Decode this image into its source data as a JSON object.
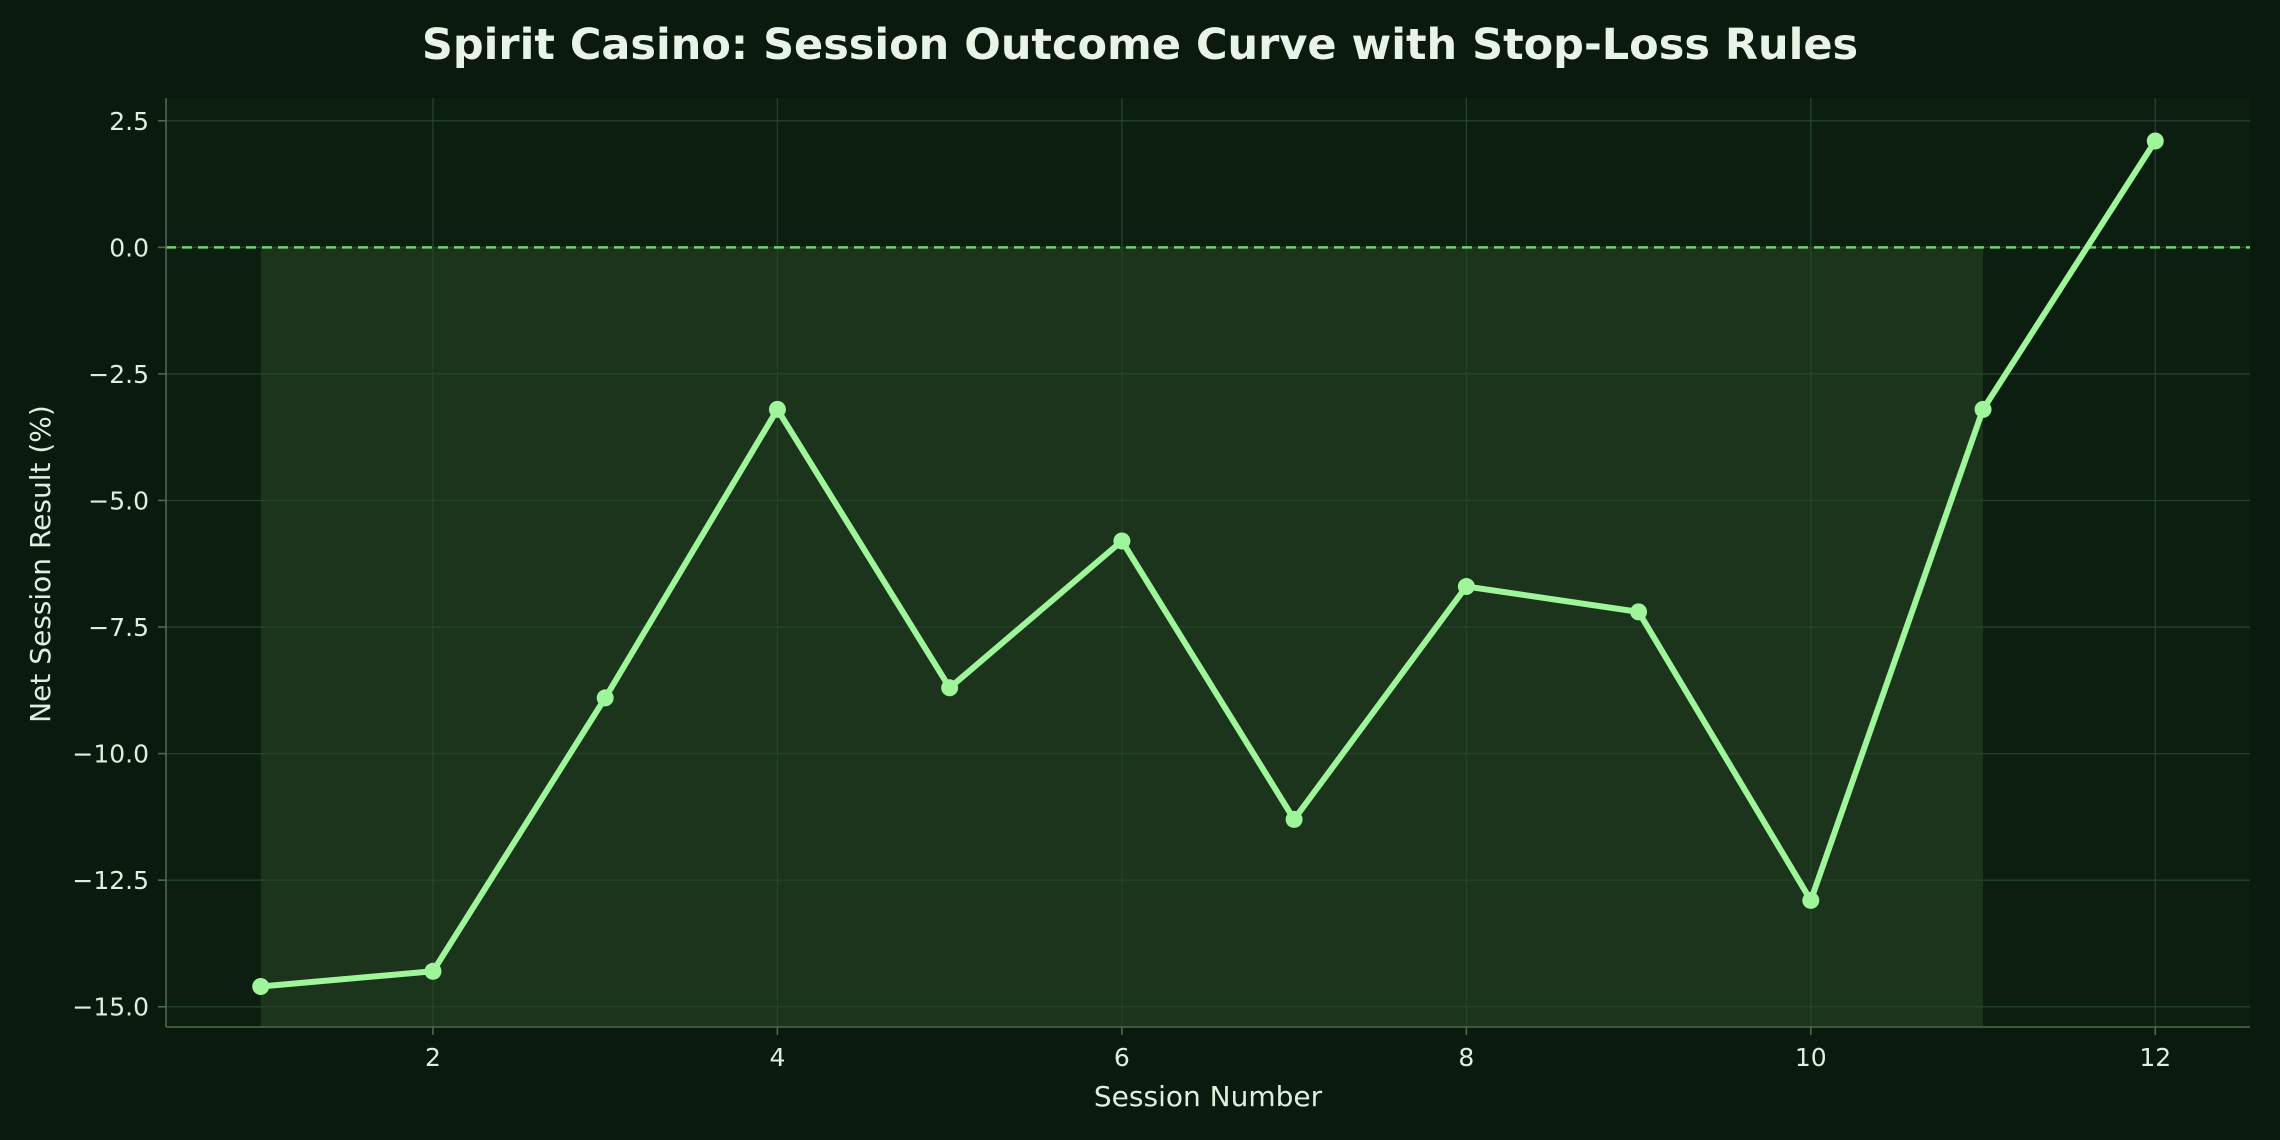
{
  "chart_data": {
    "type": "line",
    "title": "Spirit Casino: Session Outcome Curve with Stop-Loss Rules",
    "xlabel": "Session Number",
    "ylabel": "Net Session Result (%)",
    "x": [
      1,
      2,
      3,
      4,
      5,
      6,
      7,
      8,
      9,
      10,
      11,
      12
    ],
    "series": [
      {
        "values": [
          -14.6,
          -14.3,
          -8.9,
          -3.2,
          -8.7,
          -5.8,
          -11.3,
          -6.7,
          -7.2,
          -12.9,
          -3.2,
          2.1
        ]
      }
    ],
    "xlim": [
      0.45,
      12.55
    ],
    "ylim": [
      -15.4,
      2.95
    ],
    "xticks": [
      2,
      4,
      6,
      8,
      10,
      12
    ],
    "xtick_labels": [
      "2",
      "4",
      "6",
      "8",
      "10",
      "12"
    ],
    "yticks": [
      2.5,
      0.0,
      -2.5,
      -5.0,
      -7.5,
      -10.0,
      -12.5,
      -15.0
    ],
    "ytick_labels": [
      "2.5",
      "0.0",
      "−2.5",
      "−5.0",
      "−7.5",
      "−10.0",
      "−12.5",
      "−15.0"
    ],
    "reference_line_y": 0,
    "shaded_x_range": [
      1,
      11
    ],
    "grid": true,
    "legend": "none",
    "colors": {
      "background": "#0b1a0e",
      "plot_background": "#0c1e0f",
      "shaded_band": "#1b341b",
      "line": "#9ef59a",
      "reference_line": "#6fd174",
      "grid": "#24442a",
      "spine": "#4a6a4c",
      "text": "#e0eede"
    }
  }
}
